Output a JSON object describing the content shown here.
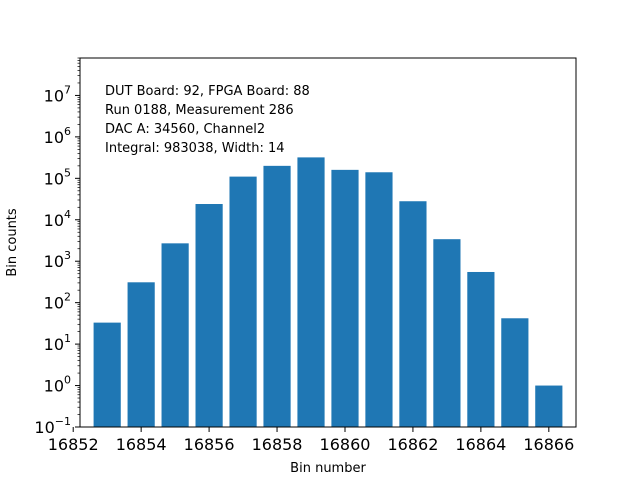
{
  "chart_data": {
    "type": "bar",
    "yscale": "log",
    "xlabel": "Bin number",
    "ylabel": "Bin counts",
    "xlim": [
      16852.2,
      16866.8
    ],
    "ylim": [
      0.1,
      80000000
    ],
    "bar_width": 0.8,
    "bar_color": "#1f77b4",
    "x": [
      16853,
      16854,
      16855,
      16856,
      16857,
      16858,
      16859,
      16860,
      16861,
      16862,
      16863,
      16864,
      16865,
      16866
    ],
    "values": [
      33,
      310,
      2700,
      24000,
      110000,
      200000,
      320000,
      160000,
      140000,
      28000,
      3400,
      550,
      42,
      1
    ],
    "x_ticks": [
      16852,
      16854,
      16856,
      16858,
      16860,
      16862,
      16864,
      16866
    ],
    "x_tick_labels": [
      "16852",
      "16854",
      "16856",
      "16858",
      "16860",
      "16862",
      "16864",
      "16866"
    ],
    "y_ticks": [
      {
        "value": 0.1,
        "base": "10",
        "exp": "−1"
      },
      {
        "value": 1,
        "base": "10",
        "exp": "0"
      },
      {
        "value": 10,
        "base": "10",
        "exp": "1"
      },
      {
        "value": 100,
        "base": "10",
        "exp": "2"
      },
      {
        "value": 1000,
        "base": "10",
        "exp": "3"
      },
      {
        "value": 10000,
        "base": "10",
        "exp": "4"
      },
      {
        "value": 100000,
        "base": "10",
        "exp": "5"
      },
      {
        "value": 1000000,
        "base": "10",
        "exp": "6"
      },
      {
        "value": 10000000,
        "base": "10",
        "exp": "7"
      }
    ],
    "annotations": [
      "DUT Board: 92, FPGA Board: 88",
      "Run 0188, Measurement 286",
      "DAC A: 34560, Channel2",
      "Integral: 983038, Width: 14"
    ]
  }
}
